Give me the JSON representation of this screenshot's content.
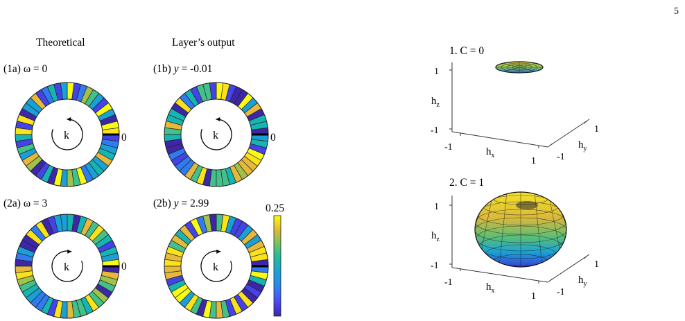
{
  "page_number": "5",
  "left_panel": {
    "col_headers": [
      "Theoretical",
      "Layer’s output"
    ],
    "rings": [
      {
        "label_prefix": "(1a) ",
        "label_var": "ω",
        "label_value": " = 0",
        "var_italic": false,
        "center_label": "k",
        "zero_label": "0",
        "rotation": "counterclockwise"
      },
      {
        "label_prefix": "(1b) ",
        "label_var": "y",
        "label_value": " = -0.01",
        "var_italic": true,
        "center_label": "k",
        "zero_label": "0",
        "rotation": "counterclockwise"
      },
      {
        "label_prefix": "(2a) ",
        "label_var": "ω",
        "label_value": " = 3",
        "var_italic": false,
        "center_label": "k",
        "zero_label": "0",
        "rotation": "clockwise"
      },
      {
        "label_prefix": "(2b) ",
        "label_var": "y",
        "label_value": " = 2.99",
        "var_italic": true,
        "center_label": "k",
        "zero_label": "",
        "rotation": "clockwise"
      }
    ],
    "colorbar": {
      "max_label": "0.25",
      "colormap": [
        "#3e26a8",
        "#4443e8",
        "#2f7bf1",
        "#1a9fd6",
        "#17b5b2",
        "#44c18a",
        "#a0c24a",
        "#e6b93a",
        "#fbe31a",
        "#f9fb15"
      ]
    }
  },
  "right_panel": {
    "plots": [
      {
        "title": "1. C = 0",
        "z_ticks": [
          "1",
          "-1"
        ],
        "x_ticks": [
          "-1",
          "1"
        ],
        "y_ticks": [
          "-1",
          "1"
        ],
        "xlabel": "h",
        "xlabel_sub": "x",
        "ylabel": "h",
        "ylabel_sub": "y",
        "zlabel": "h",
        "zlabel_sub": "z",
        "surface": "flat disk"
      },
      {
        "title": "2. C = 1",
        "z_ticks": [
          "1",
          "-1"
        ],
        "x_ticks": [
          "-1",
          "1"
        ],
        "y_ticks": [
          "-1",
          "1"
        ],
        "xlabel": "h",
        "xlabel_sub": "x",
        "ylabel": "h",
        "ylabel_sub": "y",
        "zlabel": "h",
        "zlabel_sub": "z",
        "surface": "torus-like sphere"
      }
    ]
  }
}
